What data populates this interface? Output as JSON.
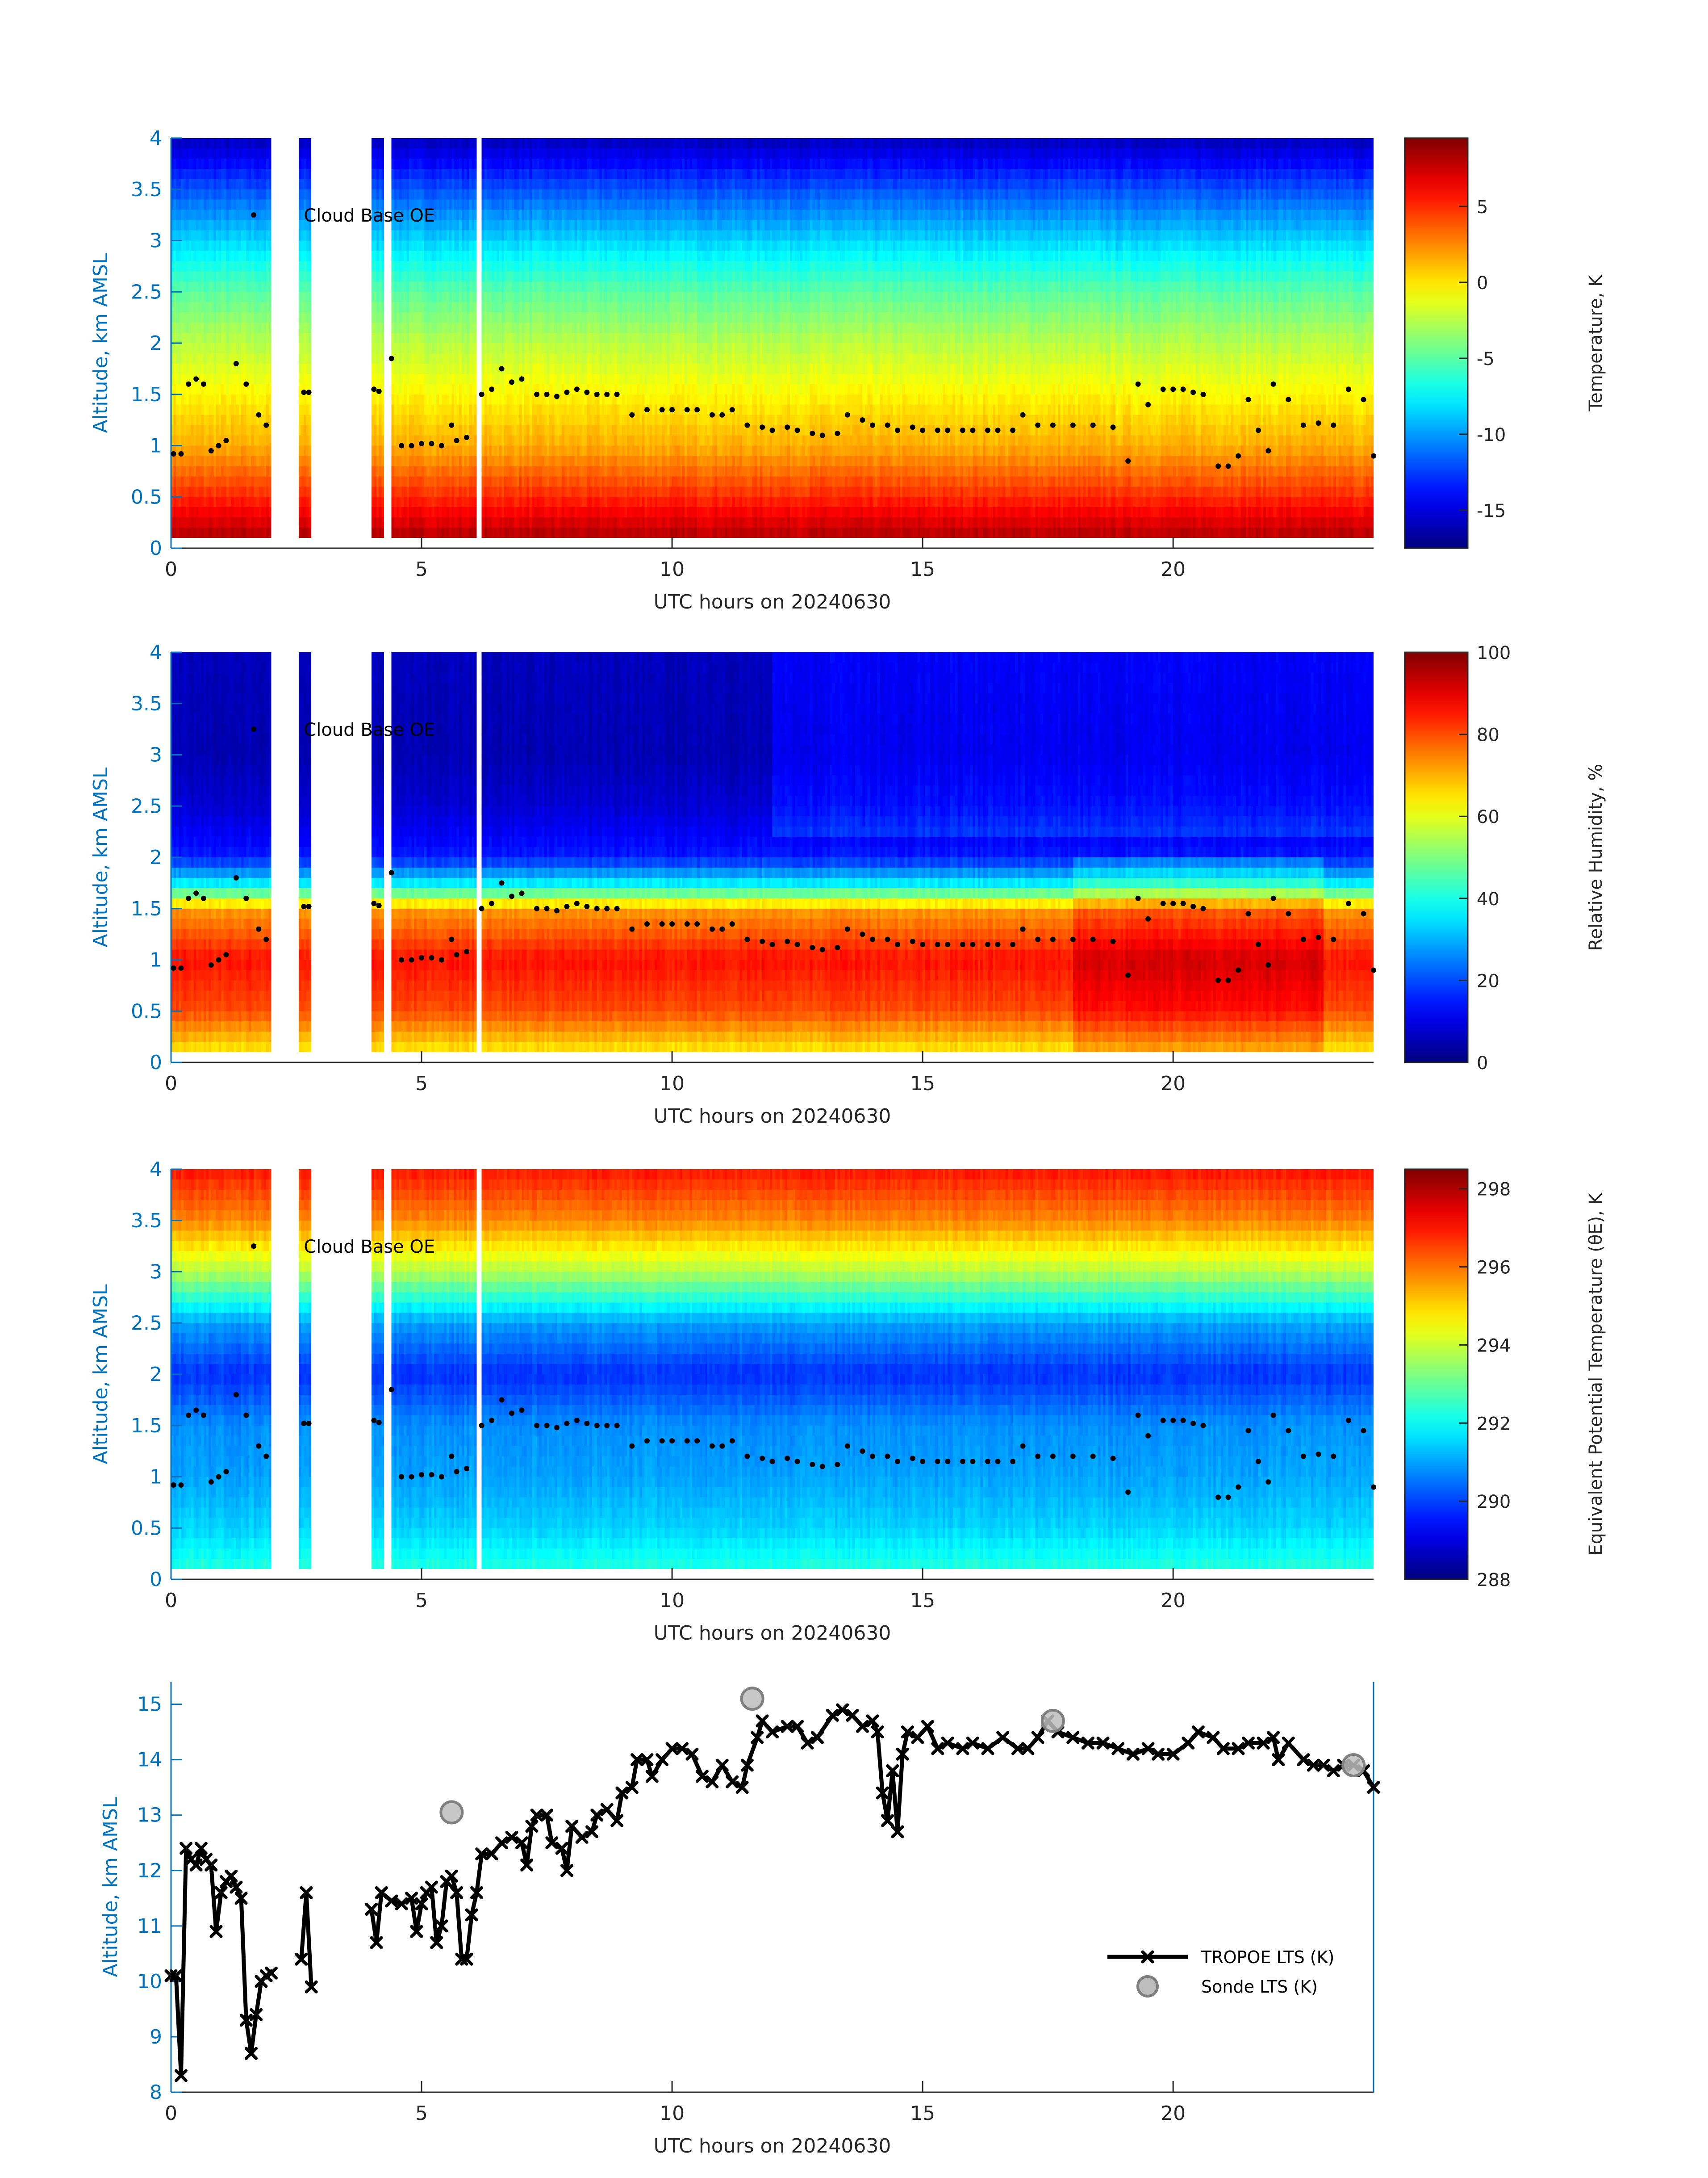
{
  "xlabel": "UTC hours on 20240630",
  "ylabel": "Altitude, km AMSL",
  "cloud_base_label": "Cloud Base OE",
  "chart_data": [
    {
      "type": "heatmap",
      "name": "temperature",
      "colorbar_label": "Temperature, K",
      "clim": [
        -17.5,
        9.5
      ],
      "colorbar_ticks": [
        -15,
        -10,
        -5,
        0,
        5
      ],
      "xlim": [
        0,
        24
      ],
      "ylim": [
        0,
        4
      ],
      "xticks": [
        0,
        5,
        10,
        15,
        20
      ],
      "yticks": [
        0,
        0.5,
        1,
        1.5,
        2,
        2.5,
        3,
        3.5,
        4
      ],
      "profile_alt": [
        0,
        0.5,
        1,
        1.5,
        2,
        2.5,
        3,
        3.5,
        4
      ],
      "profile_val": [
        9,
        5,
        1.5,
        -0.5,
        -2.5,
        -5,
        -8.5,
        -12,
        -16
      ]
    },
    {
      "type": "heatmap",
      "name": "relative-humidity",
      "colorbar_label": "Relative Humidity, %",
      "clim": [
        0,
        100
      ],
      "colorbar_ticks": [
        0,
        20,
        40,
        60,
        80,
        100
      ],
      "xlim": [
        0,
        24
      ],
      "ylim": [
        0,
        4
      ],
      "xticks": [
        0,
        5,
        10,
        15,
        20
      ],
      "yticks": [
        0,
        0.5,
        1,
        1.5,
        2,
        2.5,
        3,
        3.5,
        4
      ],
      "profile_alt": [
        0,
        0.5,
        1,
        1.5,
        1.7,
        2,
        2.5,
        3,
        4
      ],
      "profile_val": [
        60,
        80,
        86,
        72,
        40,
        15,
        8,
        5,
        6
      ]
    },
    {
      "type": "heatmap",
      "name": "equivalent-potential-temperature",
      "colorbar_label": "Equivalent Potential Temperature (θE), K",
      "clim": [
        288,
        298.5
      ],
      "colorbar_ticks": [
        288,
        290,
        292,
        294,
        296,
        298
      ],
      "xlim": [
        0,
        24
      ],
      "ylim": [
        0,
        4
      ],
      "xticks": [
        0,
        5,
        10,
        15,
        20
      ],
      "yticks": [
        0,
        0.5,
        1,
        1.5,
        2,
        2.5,
        3,
        3.5,
        4
      ],
      "profile_alt": [
        0,
        0.5,
        1,
        1.5,
        2,
        2.5,
        3,
        3.5,
        4
      ],
      "profile_val": [
        292.5,
        291.5,
        291,
        290.8,
        289.8,
        291,
        293.8,
        295.8,
        297
      ]
    },
    {
      "type": "line",
      "name": "lts",
      "xlim": [
        0,
        24
      ],
      "ylim": [
        8,
        15.4
      ],
      "xticks": [
        0,
        5,
        10,
        15,
        20
      ],
      "yticks": [
        8,
        9,
        10,
        11,
        12,
        13,
        14,
        15
      ],
      "series": [
        {
          "name": "TROPOE LTS (K)",
          "segments": [
            [
              [
                0,
                10.1
              ],
              [
                0.1,
                10.1
              ],
              [
                0.2,
                8.3
              ],
              [
                0.3,
                12.4
              ],
              [
                0.4,
                12.2
              ],
              [
                0.5,
                12.1
              ],
              [
                0.6,
                12.4
              ],
              [
                0.7,
                12.2
              ],
              [
                0.8,
                12.1
              ],
              [
                0.9,
                10.9
              ],
              [
                1.0,
                11.6
              ],
              [
                1.1,
                11.8
              ],
              [
                1.2,
                11.9
              ],
              [
                1.3,
                11.7
              ],
              [
                1.4,
                11.5
              ],
              [
                1.5,
                9.3
              ],
              [
                1.6,
                8.7
              ],
              [
                1.7,
                9.4
              ],
              [
                1.8,
                10.0
              ],
              [
                1.9,
                10.1
              ],
              [
                2.0,
                10.15
              ]
            ],
            [
              [
                2.6,
                10.4
              ],
              [
                2.7,
                11.6
              ],
              [
                2.8,
                9.9
              ]
            ],
            [
              [
                4.0,
                11.3
              ],
              [
                4.1,
                10.7
              ],
              [
                4.2,
                11.6
              ],
              [
                4.4,
                11.45
              ],
              [
                4.6,
                11.4
              ],
              [
                4.8,
                11.5
              ],
              [
                4.9,
                10.9
              ],
              [
                5.0,
                11.4
              ],
              [
                5.1,
                11.6
              ],
              [
                5.2,
                11.7
              ],
              [
                5.3,
                10.7
              ],
              [
                5.4,
                11.0
              ],
              [
                5.5,
                11.8
              ],
              [
                5.6,
                11.9
              ],
              [
                5.7,
                11.6
              ],
              [
                5.8,
                10.4
              ],
              [
                5.9,
                10.4
              ],
              [
                6.0,
                11.2
              ],
              [
                6.1,
                11.6
              ],
              [
                6.2,
                12.3
              ],
              [
                6.4,
                12.3
              ],
              [
                6.6,
                12.5
              ],
              [
                6.8,
                12.6
              ],
              [
                7.0,
                12.5
              ],
              [
                7.1,
                12.1
              ],
              [
                7.2,
                12.8
              ],
              [
                7.3,
                13.0
              ],
              [
                7.5,
                13.0
              ],
              [
                7.6,
                12.5
              ],
              [
                7.8,
                12.4
              ],
              [
                7.9,
                12.0
              ],
              [
                8.0,
                12.8
              ],
              [
                8.2,
                12.6
              ],
              [
                8.4,
                12.7
              ],
              [
                8.5,
                13.0
              ],
              [
                8.7,
                13.1
              ],
              [
                8.9,
                12.9
              ],
              [
                9.0,
                13.4
              ],
              [
                9.2,
                13.5
              ],
              [
                9.3,
                14.0
              ],
              [
                9.5,
                14.0
              ],
              [
                9.6,
                13.7
              ],
              [
                9.8,
                14.0
              ],
              [
                10.0,
                14.2
              ],
              [
                10.2,
                14.2
              ],
              [
                10.4,
                14.1
              ],
              [
                10.6,
                13.7
              ],
              [
                10.8,
                13.6
              ],
              [
                11.0,
                13.9
              ],
              [
                11.2,
                13.6
              ],
              [
                11.4,
                13.5
              ],
              [
                11.5,
                13.9
              ],
              [
                11.7,
                14.4
              ],
              [
                11.8,
                14.7
              ],
              [
                12.0,
                14.5
              ],
              [
                12.3,
                14.6
              ],
              [
                12.5,
                14.6
              ],
              [
                12.7,
                14.3
              ],
              [
                12.9,
                14.4
              ],
              [
                13.2,
                14.8
              ],
              [
                13.4,
                14.9
              ],
              [
                13.6,
                14.8
              ],
              [
                13.8,
                14.6
              ],
              [
                14.0,
                14.7
              ],
              [
                14.1,
                14.5
              ],
              [
                14.2,
                13.4
              ],
              [
                14.3,
                12.9
              ],
              [
                14.4,
                13.8
              ],
              [
                14.5,
                12.7
              ],
              [
                14.6,
                14.1
              ],
              [
                14.7,
                14.5
              ],
              [
                14.9,
                14.4
              ],
              [
                15.1,
                14.6
              ],
              [
                15.3,
                14.2
              ],
              [
                15.5,
                14.3
              ],
              [
                15.8,
                14.2
              ],
              [
                16.0,
                14.3
              ],
              [
                16.3,
                14.2
              ],
              [
                16.6,
                14.4
              ],
              [
                16.9,
                14.2
              ],
              [
                17.1,
                14.2
              ],
              [
                17.3,
                14.4
              ],
              [
                17.5,
                14.7
              ],
              [
                17.7,
                14.5
              ],
              [
                18.0,
                14.4
              ],
              [
                18.3,
                14.3
              ],
              [
                18.6,
                14.3
              ],
              [
                18.9,
                14.2
              ],
              [
                19.2,
                14.1
              ],
              [
                19.5,
                14.2
              ],
              [
                19.7,
                14.1
              ],
              [
                20.0,
                14.1
              ],
              [
                20.3,
                14.3
              ],
              [
                20.5,
                14.5
              ],
              [
                20.8,
                14.4
              ],
              [
                21.0,
                14.2
              ],
              [
                21.3,
                14.2
              ],
              [
                21.5,
                14.3
              ],
              [
                21.8,
                14.3
              ],
              [
                22.0,
                14.4
              ],
              [
                22.1,
                14.0
              ],
              [
                22.3,
                14.3
              ],
              [
                22.6,
                14.0
              ],
              [
                22.8,
                13.9
              ],
              [
                23.0,
                13.9
              ],
              [
                23.2,
                13.8
              ],
              [
                23.4,
                13.9
              ],
              [
                23.6,
                13.9
              ],
              [
                23.8,
                13.8
              ],
              [
                24.0,
                13.5
              ]
            ]
          ]
        },
        {
          "name": "Sonde LTS (K)",
          "points": [
            [
              5.6,
              13.05
            ],
            [
              11.6,
              15.1
            ],
            [
              17.6,
              14.7
            ],
            [
              23.6,
              13.9
            ]
          ]
        }
      ]
    }
  ],
  "cloud_base": [
    [
      0.05,
      0.92
    ],
    [
      0.2,
      0.92
    ],
    [
      0.35,
      1.6
    ],
    [
      0.5,
      1.65
    ],
    [
      0.65,
      1.6
    ],
    [
      0.8,
      0.95
    ],
    [
      0.95,
      1.0
    ],
    [
      1.1,
      1.05
    ],
    [
      1.3,
      1.8
    ],
    [
      1.5,
      1.6
    ],
    [
      1.65,
      3.25
    ],
    [
      1.75,
      1.3
    ],
    [
      1.9,
      1.2
    ],
    [
      2.65,
      1.52
    ],
    [
      2.75,
      1.52
    ],
    [
      4.05,
      1.55
    ],
    [
      4.15,
      1.53
    ],
    [
      4.4,
      1.85
    ],
    [
      4.6,
      1.0
    ],
    [
      4.8,
      1.0
    ],
    [
      5.0,
      1.02
    ],
    [
      5.2,
      1.02
    ],
    [
      5.4,
      1.0
    ],
    [
      5.6,
      1.2
    ],
    [
      5.7,
      1.05
    ],
    [
      5.9,
      1.08
    ],
    [
      6.2,
      1.5
    ],
    [
      6.4,
      1.55
    ],
    [
      6.6,
      1.75
    ],
    [
      6.8,
      1.62
    ],
    [
      7.0,
      1.65
    ],
    [
      7.3,
      1.5
    ],
    [
      7.5,
      1.5
    ],
    [
      7.7,
      1.48
    ],
    [
      7.9,
      1.52
    ],
    [
      8.1,
      1.55
    ],
    [
      8.3,
      1.52
    ],
    [
      8.5,
      1.5
    ],
    [
      8.7,
      1.5
    ],
    [
      8.9,
      1.5
    ],
    [
      9.2,
      1.3
    ],
    [
      9.5,
      1.35
    ],
    [
      9.8,
      1.35
    ],
    [
      10.0,
      1.35
    ],
    [
      10.3,
      1.35
    ],
    [
      10.5,
      1.35
    ],
    [
      10.8,
      1.3
    ],
    [
      11.0,
      1.3
    ],
    [
      11.2,
      1.35
    ],
    [
      11.5,
      1.2
    ],
    [
      11.8,
      1.18
    ],
    [
      12.0,
      1.15
    ],
    [
      12.3,
      1.18
    ],
    [
      12.5,
      1.15
    ],
    [
      12.8,
      1.12
    ],
    [
      13.0,
      1.1
    ],
    [
      13.3,
      1.12
    ],
    [
      13.5,
      1.3
    ],
    [
      13.8,
      1.25
    ],
    [
      14.0,
      1.2
    ],
    [
      14.3,
      1.2
    ],
    [
      14.5,
      1.15
    ],
    [
      14.8,
      1.18
    ],
    [
      15.0,
      1.15
    ],
    [
      15.3,
      1.15
    ],
    [
      15.5,
      1.15
    ],
    [
      15.8,
      1.15
    ],
    [
      16.0,
      1.15
    ],
    [
      16.3,
      1.15
    ],
    [
      16.5,
      1.15
    ],
    [
      16.8,
      1.15
    ],
    [
      17.0,
      1.3
    ],
    [
      17.3,
      1.2
    ],
    [
      17.6,
      1.2
    ],
    [
      18.0,
      1.2
    ],
    [
      18.4,
      1.2
    ],
    [
      18.8,
      1.18
    ],
    [
      19.1,
      0.85
    ],
    [
      19.3,
      1.6
    ],
    [
      19.5,
      1.4
    ],
    [
      19.8,
      1.55
    ],
    [
      20.0,
      1.55
    ],
    [
      20.2,
      1.55
    ],
    [
      20.4,
      1.52
    ],
    [
      20.6,
      1.5
    ],
    [
      20.9,
      0.8
    ],
    [
      21.1,
      0.8
    ],
    [
      21.3,
      0.9
    ],
    [
      21.5,
      1.45
    ],
    [
      21.7,
      1.15
    ],
    [
      21.9,
      0.95
    ],
    [
      22.0,
      1.6
    ],
    [
      22.3,
      1.45
    ],
    [
      22.6,
      1.2
    ],
    [
      22.9,
      1.22
    ],
    [
      23.2,
      1.2
    ],
    [
      23.5,
      1.55
    ],
    [
      23.8,
      1.45
    ],
    [
      24.0,
      0.9
    ]
  ],
  "data_intervals": [
    [
      0.0,
      2.0
    ],
    [
      2.55,
      2.8
    ],
    [
      4.0,
      4.25
    ],
    [
      4.38,
      6.1
    ],
    [
      6.2,
      24.0
    ]
  ],
  "colors": {
    "axis_blue": "#0072BD",
    "text": "#262626",
    "sonde": "#BDBDBD",
    "sonde_edge": "#7F7F7F"
  }
}
